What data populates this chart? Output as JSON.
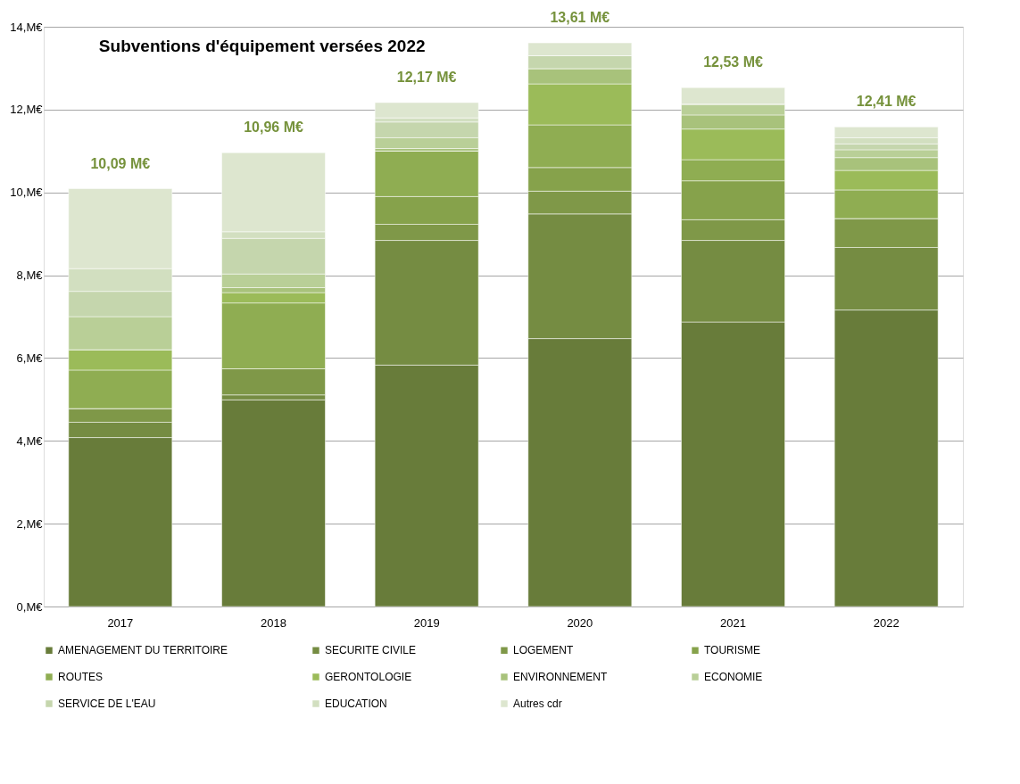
{
  "chart_data": {
    "type": "bar",
    "stacked": true,
    "title": "Subventions d'équipement versées 2022",
    "categories": [
      "2017",
      "2018",
      "2019",
      "2020",
      "2021",
      "2022"
    ],
    "series": [
      {
        "name": "AMENAGEMENT DU TERRITOIRE",
        "color": "#687c3a",
        "values": [
          4.08,
          4.99,
          5.83,
          6.47,
          6.87,
          7.16
        ]
      },
      {
        "name": "SECURITE CIVILE",
        "color": "#758c42",
        "values": [
          0.37,
          0.12,
          3.01,
          3.01,
          1.97,
          1.51
        ]
      },
      {
        "name": "LOGEMENT",
        "color": "#7f9848",
        "values": [
          0.33,
          0.63,
          0.39,
          0.55,
          0.5,
          0.7
        ]
      },
      {
        "name": "TOURISME",
        "color": "#86a24b",
        "values": [
          0,
          0,
          0.67,
          0.57,
          0.94,
          0
        ]
      },
      {
        "name": "ROUTES",
        "color": "#8fad52",
        "values": [
          0.93,
          1.59,
          1.1,
          1.03,
          0.51,
          0.69
        ]
      },
      {
        "name": "GERONTOLOGIE",
        "color": "#9bbb59",
        "values": [
          0.49,
          0.25,
          0,
          0.99,
          0.74,
          0.47
        ]
      },
      {
        "name": "ENVIRONNEMENT",
        "color": "#a8c27b",
        "values": [
          0,
          0.12,
          0.06,
          0.37,
          0.34,
          0.31
        ]
      },
      {
        "name": "ECONOMIE",
        "color": "#b9cf97",
        "values": [
          0.8,
          0.33,
          0.26,
          0,
          0.26,
          0.19
        ]
      },
      {
        "name": "SERVICE DE L'EAU",
        "color": "#c5d6ad",
        "values": [
          0.61,
          0.86,
          0.38,
          0.31,
          0,
          0.14
        ]
      },
      {
        "name": "EDUCATION",
        "color": "#d2dfc0",
        "values": [
          0.55,
          0.16,
          0.1,
          0,
          0,
          0.15
        ]
      },
      {
        "name": "Autres cdr",
        "color": "#dde6cf",
        "values": [
          1.93,
          1.91,
          0.37,
          0.31,
          0.4,
          0.26
        ]
      }
    ],
    "annotations": [
      {
        "text": "10,09 M€",
        "x": "2017",
        "y": 10.09
      },
      {
        "text": "10,96 M€",
        "x": "2018",
        "y": 10.96
      },
      {
        "text": "12,17 M€",
        "x": "2019",
        "y": 12.17
      },
      {
        "text": "13,61 M€",
        "x": "2020",
        "y": 13.61
      },
      {
        "text": "12,53 M€",
        "x": "2021",
        "y": 12.53
      },
      {
        "text": "12,41 M€",
        "x": "2022",
        "y": 11.58
      }
    ],
    "ylim": [
      0,
      14
    ],
    "yticks": [
      {
        "value": 0,
        "label": "0,M€"
      },
      {
        "value": 2,
        "label": "2,M€"
      },
      {
        "value": 4,
        "label": "4,M€"
      },
      {
        "value": 6,
        "label": "6,M€"
      },
      {
        "value": 8,
        "label": "8,M€"
      },
      {
        "value": 10,
        "label": "10,M€"
      },
      {
        "value": 12,
        "label": "12,M€"
      },
      {
        "value": 14,
        "label": "14,M€"
      }
    ],
    "grid": "y",
    "legend": "bottom"
  }
}
